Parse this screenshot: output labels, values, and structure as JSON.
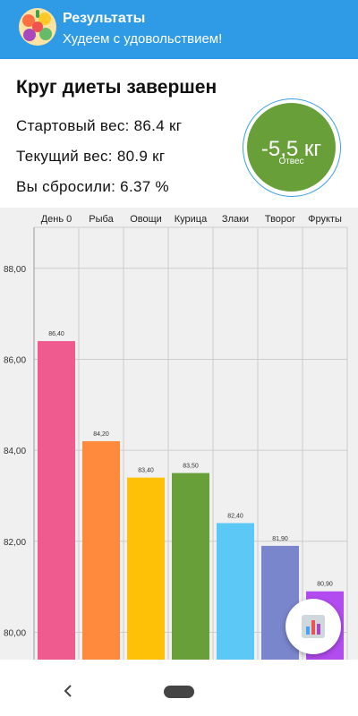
{
  "appbar": {
    "title": "Результаты",
    "subtitle": "Худеем с удовольствием!",
    "logo_icon": "fruit-vegetable-logo-icon",
    "color": "#2f9be6"
  },
  "summary": {
    "heading": "Круг диеты завершен",
    "start_weight": "Стартовый вес: 86.4 кг",
    "current_weight": "Текущий вес: 80.9 кг",
    "lost": "Вы сбросили: 6.37 %"
  },
  "badge": {
    "value": "-5,5 кг",
    "label": "Отвес",
    "color": "#689f38"
  },
  "chart_data": {
    "type": "bar",
    "categories": [
      "День 0",
      "Рыба",
      "Овощи",
      "Курица",
      "Злаки",
      "Творог",
      "Фрукты"
    ],
    "values": [
      86.4,
      84.2,
      83.4,
      83.5,
      82.4,
      81.9,
      80.9
    ],
    "value_labels": [
      "86,40",
      "84,20",
      "83,40",
      "83,50",
      "82,40",
      "81,90",
      "80,90"
    ],
    "colors": [
      "#ef5a8f",
      "#ff8a3d",
      "#ffc107",
      "#689f38",
      "#5bc8f5",
      "#7986cb",
      "#b24bf0"
    ],
    "yticks": [
      80,
      82,
      84,
      86,
      88
    ],
    "ytick_labels": [
      "80,00",
      "82,00",
      "84,00",
      "86,00",
      "88,00"
    ],
    "ylim": [
      79.4,
      88.9
    ],
    "legend": "none",
    "grid": true
  },
  "fab": {
    "icon": "bar-chart-icon"
  },
  "navbar": {
    "back_icon": "back-chevron-icon",
    "home_icon": "home-pill-icon"
  }
}
